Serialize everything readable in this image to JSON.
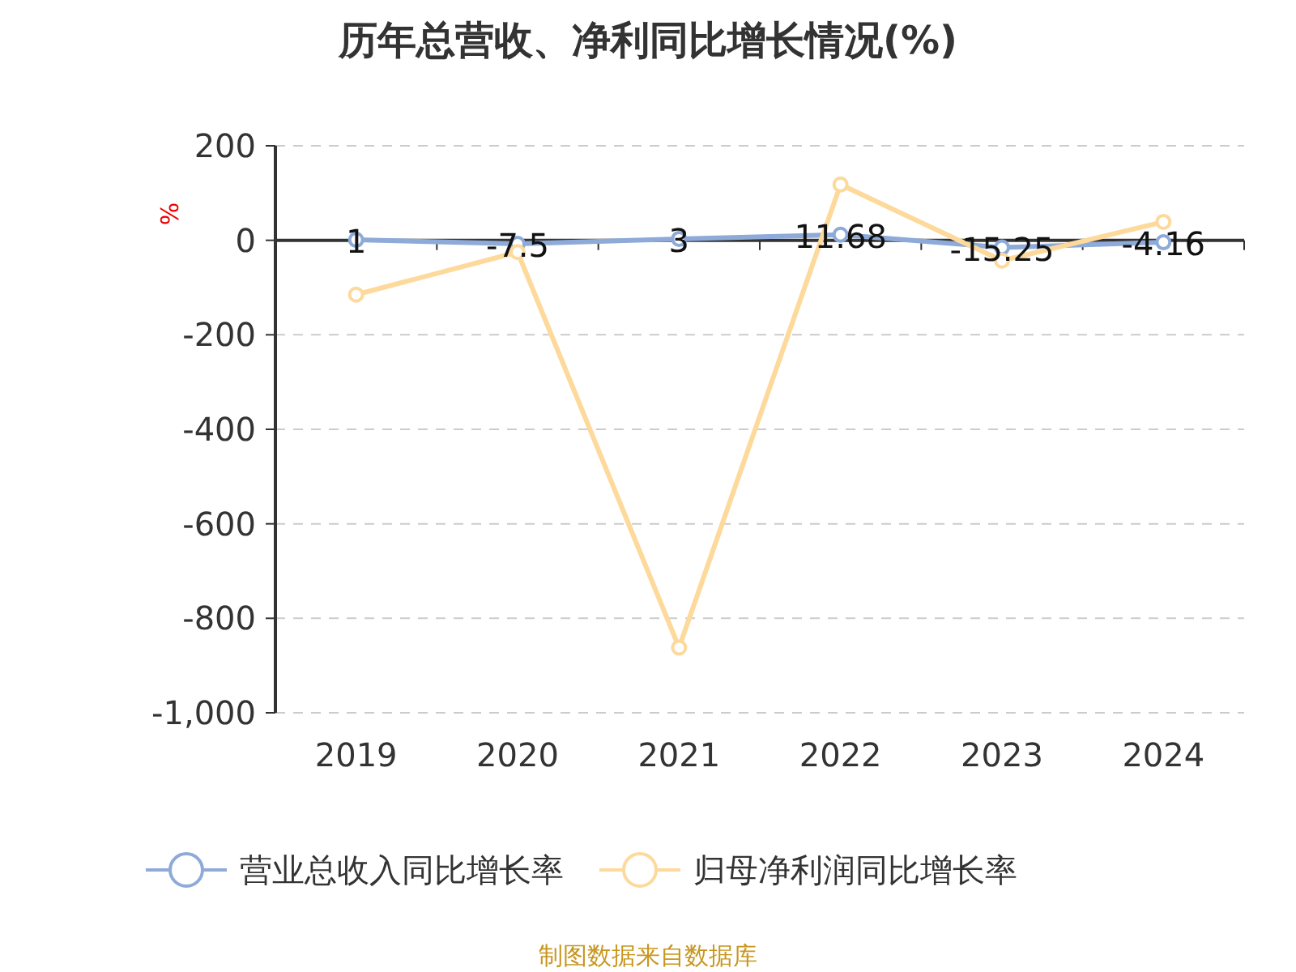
{
  "chart_data": {
    "type": "line",
    "title": "历年总营收、净利同比增长情况(%)",
    "ylabel": "%",
    "categories": [
      "2019",
      "2020",
      "2021",
      "2022",
      "2023",
      "2024"
    ],
    "series": [
      {
        "name": "营业总收入同比增长率",
        "color": "#8eaad9",
        "values": [
          1,
          -7.5,
          3,
          11.68,
          -15.25,
          -4.16
        ],
        "value_labels": [
          "1",
          "-7.5",
          "3",
          "11.68",
          "-15.25",
          "-4.16"
        ]
      },
      {
        "name": "归母净利润同比增长率",
        "color": "#fdd99b",
        "values": [
          -115,
          -25,
          -862,
          118,
          -43,
          39
        ]
      }
    ],
    "ylim": [
      -1000,
      200
    ],
    "yticks": [
      {
        "value": 200,
        "label": "200"
      },
      {
        "value": 0,
        "label": "0"
      },
      {
        "value": -200,
        "label": "-200"
      },
      {
        "value": -400,
        "label": "-400"
      },
      {
        "value": -600,
        "label": "-600"
      },
      {
        "value": -800,
        "label": "-800"
      },
      {
        "value": -1000,
        "label": "-1,000"
      }
    ],
    "grid": "y",
    "legend": "bottom",
    "marker": "circle",
    "line_style": "solid",
    "annotations": [
      "制图数据来自数据库"
    ]
  }
}
